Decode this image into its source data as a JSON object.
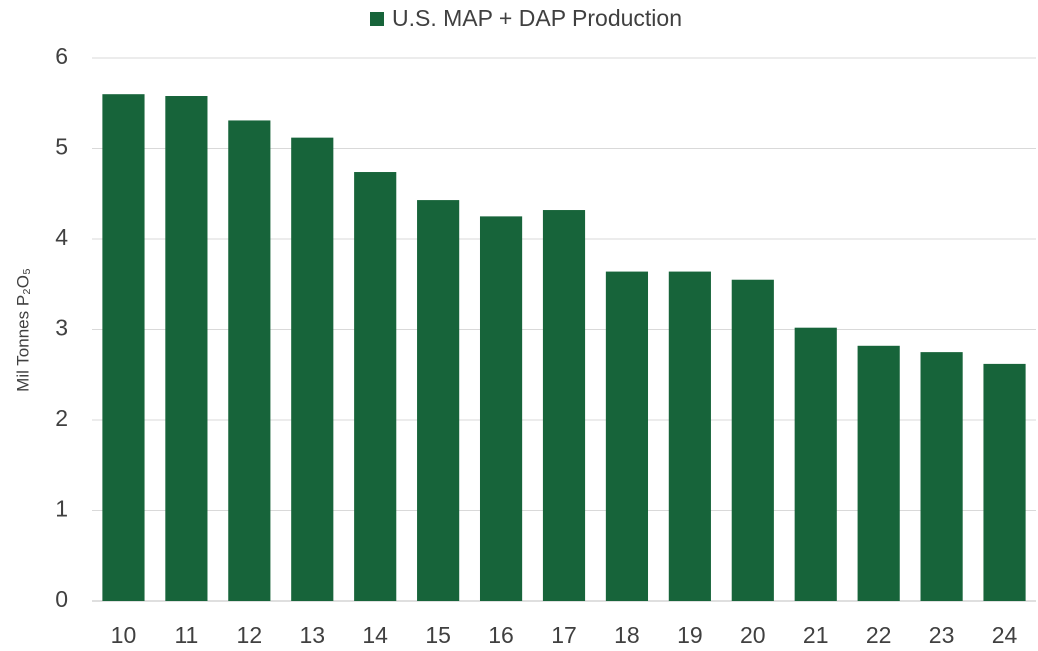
{
  "chart_data": {
    "type": "bar",
    "y_label": "Mil Tonnes P₂O₅",
    "categories": [
      "10",
      "11",
      "12",
      "13",
      "14",
      "15",
      "16",
      "17",
      "18",
      "19",
      "20",
      "21",
      "22",
      "23",
      "24"
    ],
    "series": [
      {
        "name": "U.S. MAP + DAP Production",
        "color": "#17643a",
        "values": [
          5.6,
          5.58,
          5.31,
          5.12,
          4.74,
          4.43,
          4.25,
          4.32,
          3.64,
          3.64,
          3.55,
          3.02,
          2.82,
          2.75,
          2.62
        ]
      }
    ],
    "ylim": [
      0,
      6
    ],
    "yticks": [
      0,
      1,
      2,
      3,
      4,
      5,
      6
    ],
    "grid": true,
    "legend": "top"
  }
}
